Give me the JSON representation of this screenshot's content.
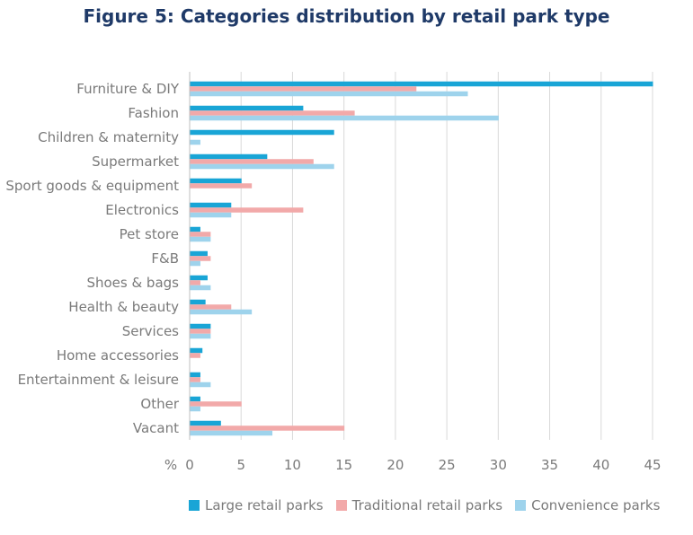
{
  "title": "Figure 5: Categories distribution by retail park type",
  "chart_data": {
    "type": "bar",
    "orientation": "horizontal",
    "title": "Figure 5: Categories distribution by retail park type",
    "xlabel": "%",
    "ylabel": "",
    "xlim": [
      0,
      45
    ],
    "xticks": [
      0,
      5,
      10,
      15,
      20,
      25,
      30,
      35,
      40,
      45
    ],
    "grid": "vertical",
    "legend": "bottom",
    "categories": [
      "Furniture & DIY",
      "Fashion",
      "Children & maternity",
      "Supermarket",
      "Sport goods & equipment",
      "Electronics",
      "Pet store",
      "F&B",
      "Shoes & bags",
      "Health & beauty",
      "Services",
      "Home accessories",
      "Entertainment & leisure",
      "Other",
      "Vacant"
    ],
    "series": [
      {
        "name": "Large retail parks",
        "color": "#19a5d6",
        "values": [
          45,
          11,
          14,
          7.5,
          5,
          4,
          1,
          1.7,
          1.7,
          1.5,
          2,
          1.2,
          1,
          1,
          3
        ]
      },
      {
        "name": "Traditional retail parks",
        "color": "#f2a9a9",
        "values": [
          22,
          16,
          0,
          12,
          6,
          11,
          2,
          2,
          1,
          4,
          2,
          1,
          1,
          5,
          15
        ]
      },
      {
        "name": "Convenience parks",
        "color": "#9ed3ec",
        "values": [
          27,
          30,
          1,
          14,
          0,
          4,
          2,
          1,
          2,
          6,
          2,
          0,
          2,
          1,
          8
        ]
      }
    ]
  }
}
